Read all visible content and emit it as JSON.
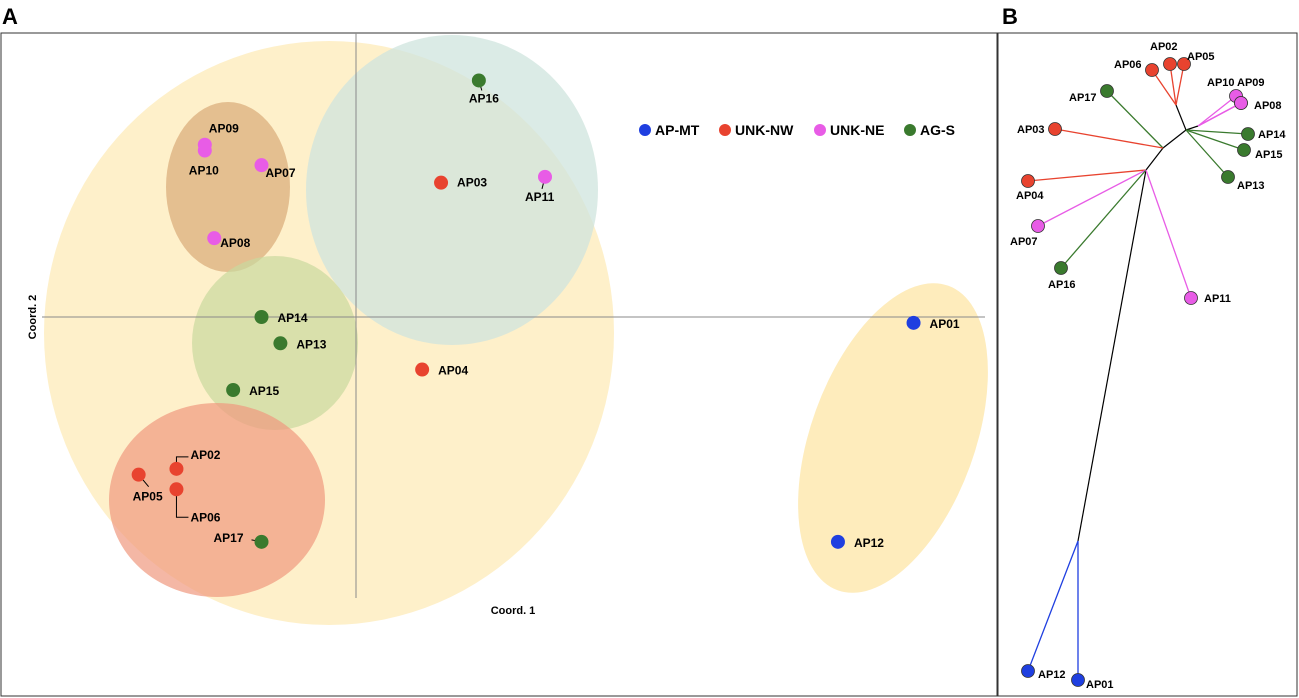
{
  "chart_data": [
    {
      "type": "scatter",
      "panel": "A",
      "xlabel": "Coord. 1",
      "ylabel": "Coord. 2",
      "legend": {
        "placement": "top-right",
        "entries": [
          {
            "name": "AP-MT",
            "color": "#1f3fe0"
          },
          {
            "name": "UNK-NW",
            "color": "#e8432f"
          },
          {
            "name": "UNK-NE",
            "color": "#e85ce6"
          },
          {
            "name": "AG-S",
            "color": "#3a7a2e"
          }
        ]
      },
      "points": [
        {
          "label": "AP16",
          "group": "AG-S",
          "x": 0.13,
          "y": 0.81
        },
        {
          "label": "AP03",
          "group": "UNK-NW",
          "x": 0.09,
          "y": 0.46
        },
        {
          "label": "AP11",
          "group": "UNK-NE",
          "x": 0.2,
          "y": 0.48
        },
        {
          "label": "AP09",
          "group": "UNK-NE",
          "x": -0.16,
          "y": 0.59
        },
        {
          "label": "AP10",
          "group": "UNK-NE",
          "x": -0.16,
          "y": 0.57
        },
        {
          "label": "AP07",
          "group": "UNK-NE",
          "x": -0.1,
          "y": 0.52
        },
        {
          "label": "AP08",
          "group": "UNK-NE",
          "x": -0.15,
          "y": 0.27
        },
        {
          "label": "AP14",
          "group": "AG-S",
          "x": -0.1,
          "y": 0.0
        },
        {
          "label": "AP13",
          "group": "AG-S",
          "x": -0.08,
          "y": -0.09
        },
        {
          "label": "AP04",
          "group": "UNK-NW",
          "x": 0.07,
          "y": -0.18
        },
        {
          "label": "AP15",
          "group": "AG-S",
          "x": -0.13,
          "y": -0.25
        },
        {
          "label": "AP02",
          "group": "UNK-NW",
          "x": -0.19,
          "y": -0.52
        },
        {
          "label": "AP05",
          "group": "UNK-NW",
          "x": -0.23,
          "y": -0.54
        },
        {
          "label": "AP06",
          "group": "UNK-NW",
          "x": -0.19,
          "y": -0.59
        },
        {
          "label": "AP17",
          "group": "AG-S",
          "x": -0.1,
          "y": -0.77
        },
        {
          "label": "AP01",
          "group": "AP-MT",
          "x": 0.59,
          "y": -0.02
        },
        {
          "label": "AP12",
          "group": "AP-MT",
          "x": 0.51,
          "y": -0.77
        }
      ],
      "xlim": [
        -0.35,
        0.66
      ],
      "ylim": [
        -1.0,
        1.05
      ],
      "grid": false
    },
    {
      "type": "tree",
      "panel": "B",
      "tips": [
        {
          "label": "AP02",
          "group": "UNK-NW"
        },
        {
          "label": "AP05",
          "group": "UNK-NW"
        },
        {
          "label": "AP06",
          "group": "UNK-NW"
        },
        {
          "label": "AP10",
          "group": "UNK-NE"
        },
        {
          "label": "AP09",
          "group": "UNK-NE"
        },
        {
          "label": "AP08",
          "group": "UNK-NE"
        },
        {
          "label": "AP17",
          "group": "AG-S"
        },
        {
          "label": "AP14",
          "group": "AG-S"
        },
        {
          "label": "AP03",
          "group": "UNK-NW"
        },
        {
          "label": "AP15",
          "group": "AG-S"
        },
        {
          "label": "AP13",
          "group": "AG-S"
        },
        {
          "label": "AP04",
          "group": "UNK-NW"
        },
        {
          "label": "AP07",
          "group": "UNK-NE"
        },
        {
          "label": "AP16",
          "group": "AG-S"
        },
        {
          "label": "AP11",
          "group": "UNK-NE"
        },
        {
          "label": "AP12",
          "group": "AP-MT"
        },
        {
          "label": "AP01",
          "group": "AP-MT"
        }
      ]
    }
  ]
}
